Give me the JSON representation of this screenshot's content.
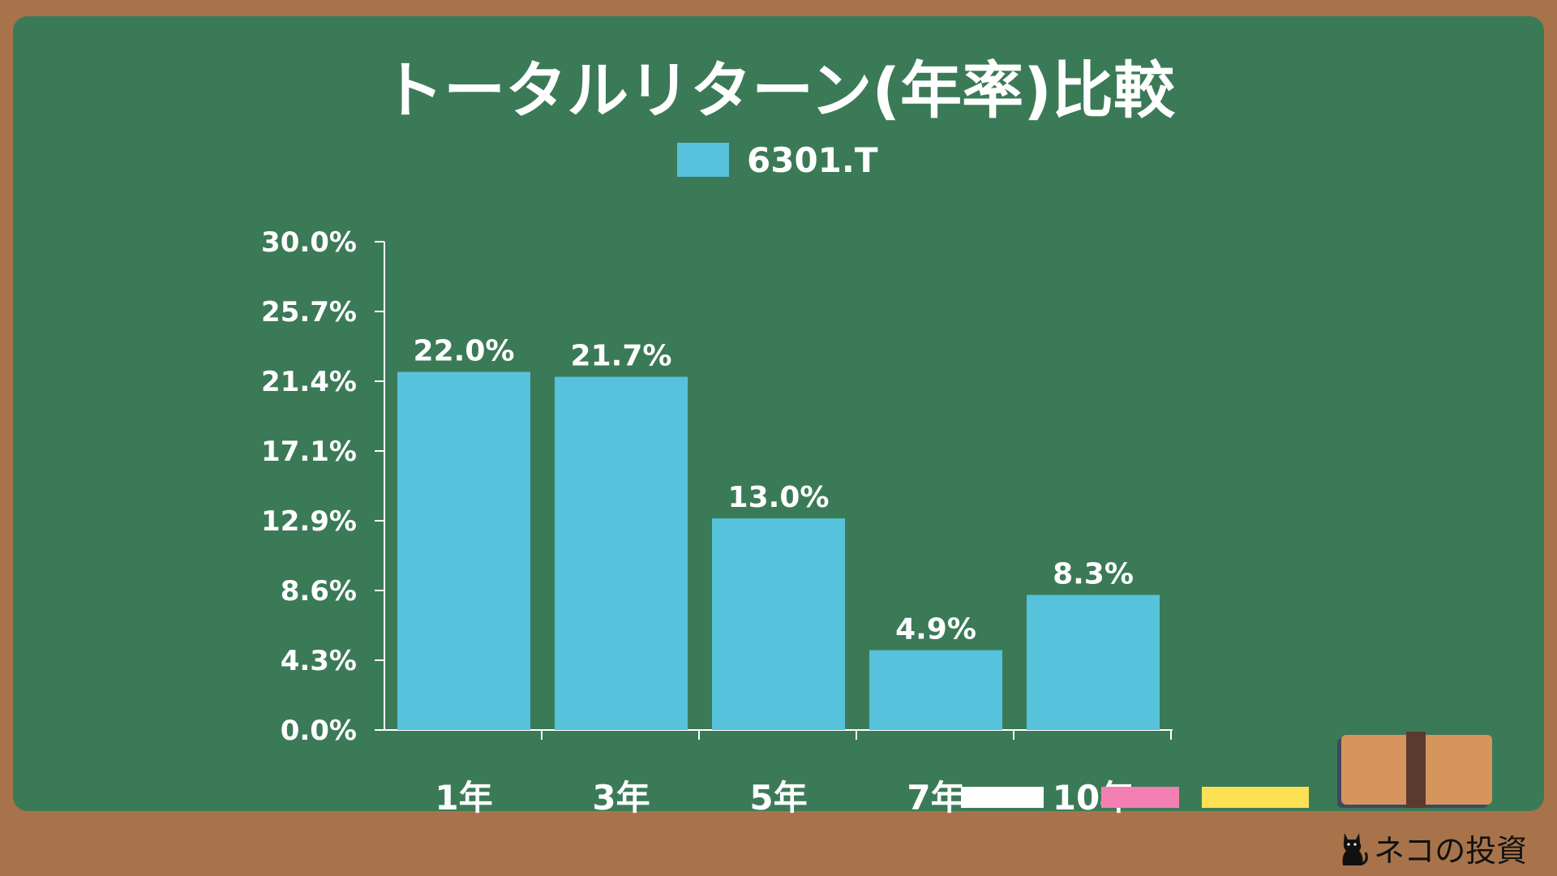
{
  "chart_data": {
    "type": "bar",
    "title": "トータルリターン(年率)比較",
    "categories": [
      "1年",
      "3年",
      "5年",
      "7年",
      "10年"
    ],
    "series": [
      {
        "name": "6301.T",
        "values": [
          22.0,
          21.7,
          13.0,
          4.9,
          8.3
        ]
      }
    ],
    "data_labels": [
      "22.0%",
      "21.7%",
      "13.0%",
      "4.9%",
      "8.3%"
    ],
    "y_ticks": [
      "0.0%",
      "4.3%",
      "8.6%",
      "12.9%",
      "17.1%",
      "21.4%",
      "25.7%",
      "30.0%"
    ],
    "ylim": [
      0,
      30
    ],
    "xlabel": "",
    "ylabel": "",
    "legend_position": "top-center",
    "grid": false
  },
  "colors": {
    "board": "#3b7a57",
    "frame": "#a8734b",
    "bar": "#56c2dc",
    "text": "#ffffff"
  },
  "decorations": {
    "brand": "ネコの投資",
    "brand_icon": "black-cat-icon",
    "chalk_colors": [
      "#ffffff",
      "#f37fb3",
      "#fde054"
    ],
    "eraser_icon": "eraser-icon"
  }
}
